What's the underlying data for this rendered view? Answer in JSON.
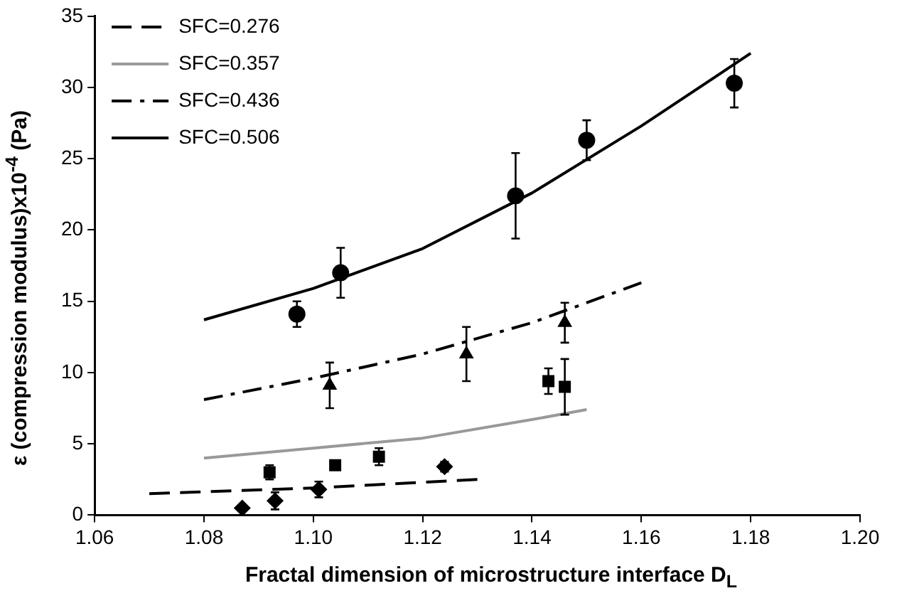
{
  "chart_data": {
    "type": "scatter",
    "xlabel": "Fractal dimension of microstructure interface D$_{L}$",
    "ylabel": "ε (compression modulus)x10$^{-4}$ (Pa)",
    "xlim": [
      1.06,
      1.2
    ],
    "xticks": [
      {
        "value": 1.06,
        "label": "1.06"
      },
      {
        "value": 1.08,
        "label": "1.08"
      },
      {
        "value": 1.1,
        "label": "1.10"
      },
      {
        "value": 1.12,
        "label": "1.12"
      },
      {
        "value": 1.14,
        "label": "1.14"
      },
      {
        "value": 1.16,
        "label": "1.16"
      },
      {
        "value": 1.18,
        "label": "1.18"
      },
      {
        "value": 1.2,
        "label": "1.20"
      }
    ],
    "ylim": [
      0,
      35
    ],
    "yticks": [
      0,
      5,
      10,
      15,
      20,
      25,
      30,
      35
    ],
    "grid": false,
    "legend": "top left",
    "series": [
      {
        "name": "SFC=0.276",
        "type": "line",
        "line_style": "dashed",
        "marker": "none",
        "color": "#000000",
        "x": [
          1.07,
          1.1,
          1.13
        ],
        "values": [
          1.5,
          1.9,
          2.5
        ]
      },
      {
        "name": "SFC=0.357",
        "type": "line",
        "line_style": "solid",
        "marker": "none",
        "color": "#999999",
        "x": [
          1.08,
          1.1,
          1.12,
          1.14,
          1.15
        ],
        "values": [
          4.0,
          4.7,
          5.4,
          6.7,
          7.4
        ]
      },
      {
        "name": "SFC=0.436",
        "type": "line",
        "line_style": "dashdot",
        "marker": "none",
        "color": "#000000",
        "x": [
          1.08,
          1.1,
          1.12,
          1.14,
          1.16
        ],
        "values": [
          8.1,
          9.6,
          11.3,
          13.5,
          16.3
        ]
      },
      {
        "name": "SFC=0.506",
        "type": "line",
        "line_style": "solid",
        "marker": "none",
        "color": "#000000",
        "x": [
          1.08,
          1.1,
          1.12,
          1.14,
          1.16,
          1.18
        ],
        "values": [
          13.7,
          15.9,
          18.7,
          22.6,
          27.3,
          32.4
        ]
      },
      {
        "type": "scatter",
        "marker": "diamond",
        "color": "#000000",
        "x": [
          1.087,
          1.093,
          1.101,
          1.124
        ],
        "values": [
          0.5,
          1.0,
          1.8,
          3.4
        ],
        "errors": [
          null,
          0.6,
          0.55,
          0.35
        ]
      },
      {
        "type": "scatter",
        "marker": "square",
        "color": "#000000",
        "x": [
          1.092,
          1.104,
          1.112,
          1.143,
          1.146
        ],
        "values": [
          3.0,
          3.5,
          4.1,
          9.4,
          9.0
        ],
        "errors": [
          0.5,
          null,
          0.6,
          0.9,
          1.95
        ]
      },
      {
        "type": "scatter",
        "marker": "triangle",
        "color": "#000000",
        "x": [
          1.103,
          1.128,
          1.146
        ],
        "values": [
          9.1,
          11.3,
          13.5
        ],
        "errors": [
          1.6,
          1.9,
          1.4
        ]
      },
      {
        "type": "scatter",
        "marker": "circle",
        "color": "#000000",
        "x": [
          1.097,
          1.105,
          1.137,
          1.15,
          1.177
        ],
        "values": [
          14.1,
          17.0,
          22.4,
          26.3,
          30.3
        ],
        "errors": [
          0.9,
          1.75,
          3.0,
          1.4,
          1.7
        ]
      }
    ]
  }
}
